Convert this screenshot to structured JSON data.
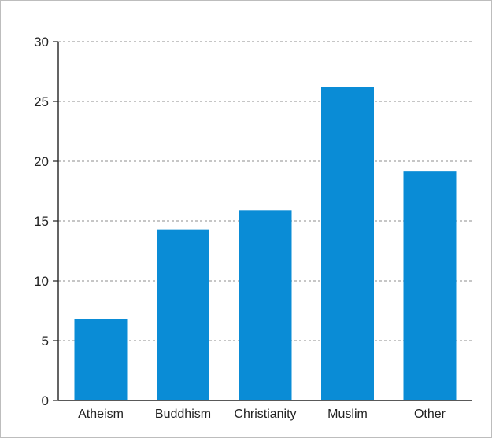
{
  "chart_data": {
    "type": "bar",
    "categories": [
      "Atheism",
      "Buddhism",
      "Christianity",
      "Muslim",
      "Other"
    ],
    "values": [
      6.8,
      14.3,
      15.9,
      26.2,
      19.2
    ],
    "title": "",
    "xlabel": "",
    "ylabel": "",
    "ylim": [
      0,
      30
    ],
    "yticks": [
      0,
      5,
      10,
      15,
      20,
      25,
      30
    ],
    "grid": true,
    "bar_color": "#0a8cd6",
    "grid_color": "#8c8c8c",
    "axis_color": "#222222"
  }
}
